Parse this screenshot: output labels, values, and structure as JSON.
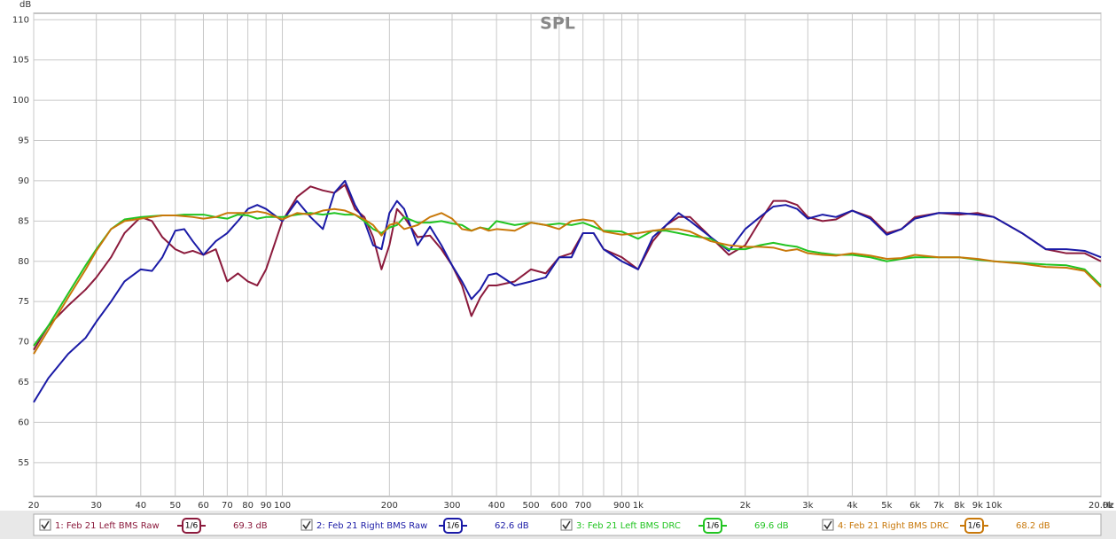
{
  "chart_data": {
    "type": "line",
    "title": "SPL",
    "y_unit": "dB",
    "x_unit": "Hz",
    "log_x": true,
    "grid": true,
    "xlim": [
      20,
      20000
    ],
    "ylim": [
      50.8,
      110.8
    ],
    "xticks": [
      20,
      30,
      40,
      50,
      60,
      70,
      80,
      90,
      100,
      200,
      300,
      400,
      500,
      600,
      700,
      {
        "value": 800,
        "label": null
      },
      900,
      {
        "value": 1000,
        "label": "1k"
      },
      {
        "value": 2000,
        "label": "2k"
      },
      {
        "value": 3000,
        "label": "3k"
      },
      {
        "value": 4000,
        "label": "4k"
      },
      {
        "value": 5000,
        "label": "5k"
      },
      {
        "value": 6000,
        "label": "6k"
      },
      {
        "value": 7000,
        "label": "7k"
      },
      {
        "value": 8000,
        "label": "8k"
      },
      {
        "value": 9000,
        "label": "9k"
      },
      {
        "value": 10000,
        "label": "10k"
      },
      {
        "value": 20000,
        "label": "20.0k"
      }
    ],
    "yticks": [
      55,
      60,
      65,
      70,
      75,
      80,
      85,
      90,
      95,
      100,
      105,
      110
    ],
    "x": [
      20,
      22,
      25,
      28,
      30,
      33,
      36,
      40,
      43,
      46,
      50,
      53,
      56,
      60,
      65,
      70,
      75,
      80,
      85,
      90,
      100,
      110,
      120,
      130,
      140,
      150,
      160,
      170,
      180,
      190,
      200,
      210,
      220,
      240,
      260,
      280,
      300,
      320,
      340,
      360,
      380,
      400,
      450,
      500,
      550,
      600,
      650,
      700,
      750,
      800,
      900,
      1000,
      1100,
      1200,
      1300,
      1400,
      1600,
      1800,
      2000,
      2200,
      2400,
      2600,
      2800,
      3000,
      3300,
      3600,
      4000,
      4500,
      5000,
      5500,
      6000,
      7000,
      8000,
      9000,
      10000,
      12000,
      14000,
      16000,
      18000,
      20000
    ],
    "series": [
      {
        "name": "1: Feb 21 Left BMS Raw",
        "color": "#8b1a3c",
        "smoothing": "1/6",
        "level": "69.3 dB",
        "values": [
          69,
          72,
          74.5,
          76.5,
          78,
          80.5,
          83.5,
          85.5,
          85,
          83,
          81.5,
          81,
          81.3,
          80.8,
          81.5,
          77.5,
          78.5,
          77.5,
          77,
          79,
          85,
          88,
          89.3,
          88.8,
          88.5,
          89.5,
          86.5,
          85.5,
          83,
          79,
          82,
          86.5,
          85.5,
          83,
          83.2,
          81.5,
          79.5,
          77,
          73.2,
          75.5,
          77,
          77,
          77.5,
          79,
          78.5,
          80.5,
          81,
          83.5,
          83.5,
          81.5,
          80.5,
          79,
          82.5,
          84.5,
          85.5,
          85.5,
          83,
          80.8,
          82,
          85,
          87.5,
          87.5,
          87,
          85.5,
          85,
          85.2,
          86.3,
          85.5,
          83.5,
          84,
          85.5,
          86,
          85.8,
          86,
          85.5,
          83.5,
          81.5,
          81,
          81,
          80
        ]
      },
      {
        "name": "2: Feb 21 Right BMS Raw",
        "color": "#1a1aa6",
        "smoothing": "1/6",
        "level": "62.6 dB",
        "values": [
          62.5,
          65.5,
          68.5,
          70.5,
          72.5,
          75,
          77.5,
          79,
          78.8,
          80.5,
          83.8,
          84,
          82.5,
          80.8,
          82.5,
          83.5,
          85,
          86.5,
          87,
          86.5,
          85,
          87.5,
          85.5,
          84,
          88.5,
          90,
          87,
          85,
          82,
          81.5,
          86,
          87.5,
          86.5,
          82,
          84.3,
          82,
          79.5,
          77.5,
          75.3,
          76.5,
          78.3,
          78.5,
          77,
          77.5,
          78,
          80.5,
          80.5,
          83.5,
          83.5,
          81.5,
          80,
          79,
          83,
          84.5,
          86,
          85,
          83,
          81.3,
          84,
          85.5,
          86.8,
          87,
          86.5,
          85.3,
          85.8,
          85.5,
          86.3,
          85.3,
          83.3,
          84,
          85.3,
          86,
          86,
          85.8,
          85.5,
          83.5,
          81.5,
          81.5,
          81.3,
          80.5
        ]
      },
      {
        "name": "3: Feb 21 Left BMS DRC",
        "color": "#22c422",
        "smoothing": "1/6",
        "level": "69.6 dB",
        "values": [
          69.5,
          72,
          76,
          79.5,
          81.5,
          84,
          85.2,
          85.5,
          85.6,
          85.7,
          85.7,
          85.8,
          85.8,
          85.8,
          85.5,
          85.3,
          85.8,
          85.7,
          85.3,
          85.5,
          85.5,
          85.8,
          86,
          85.8,
          86,
          85.8,
          85.8,
          85,
          84,
          83.5,
          84.2,
          84.5,
          85.5,
          84.8,
          84.8,
          85,
          84.7,
          84.5,
          83.8,
          84.2,
          84,
          85,
          84.5,
          84.8,
          84.5,
          84.7,
          84.5,
          84.8,
          84.3,
          83.8,
          83.7,
          82.8,
          83.8,
          83.8,
          83.5,
          83.2,
          82.8,
          81.5,
          81.5,
          82,
          82.3,
          82,
          81.8,
          81.3,
          81,
          80.8,
          80.8,
          80.5,
          80,
          80.3,
          80.5,
          80.5,
          80.5,
          80.2,
          80,
          79.8,
          79.6,
          79.5,
          79,
          77
        ]
      },
      {
        "name": "4: Feb 21 Right BMS DRC",
        "color": "#c8780a",
        "smoothing": "1/6",
        "level": "68.2 dB",
        "values": [
          68.5,
          71.5,
          75.5,
          79,
          81.3,
          84,
          85,
          85.3,
          85.5,
          85.7,
          85.7,
          85.6,
          85.5,
          85.3,
          85.5,
          86,
          86,
          86,
          86.2,
          86,
          85.2,
          86,
          85.8,
          86.3,
          86.5,
          86.3,
          85.8,
          85.2,
          84.5,
          83.2,
          84.5,
          84.8,
          84,
          84.5,
          85.5,
          86,
          85.3,
          84,
          83.8,
          84.2,
          83.8,
          84,
          83.8,
          84.8,
          84.5,
          84,
          85,
          85.2,
          85,
          83.7,
          83.3,
          83.5,
          83.8,
          84,
          84,
          83.7,
          82.5,
          82,
          81.8,
          81.8,
          81.7,
          81.3,
          81.5,
          81,
          80.8,
          80.7,
          81,
          80.7,
          80.3,
          80.4,
          80.8,
          80.5,
          80.5,
          80.3,
          80,
          79.7,
          79.3,
          79.2,
          78.8,
          76.8
        ]
      }
    ]
  }
}
